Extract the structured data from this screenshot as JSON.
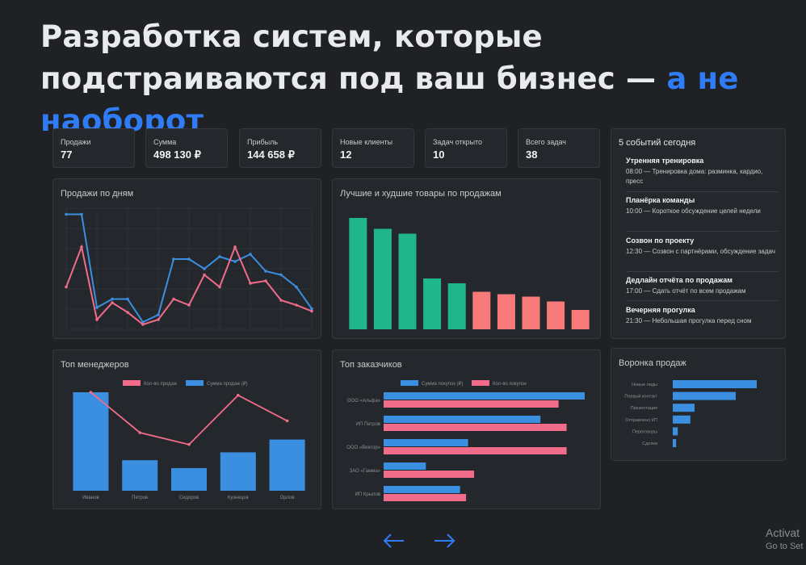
{
  "headline": {
    "main": "Разработка систем, которые подстраиваются под ваш бизнес — ",
    "accent": "а не наоборот"
  },
  "kpis": [
    {
      "label": "Продажи",
      "value": "77"
    },
    {
      "label": "Сумма",
      "value": "498 130 ₽"
    },
    {
      "label": "Прибыль",
      "value": "144 658 ₽"
    },
    {
      "label": "Новые клиенты",
      "value": "12"
    },
    {
      "label": "Задач открыто",
      "value": "10"
    },
    {
      "label": "Всего задач",
      "value": "38"
    }
  ],
  "events": {
    "title": "5 событий сегодня",
    "items": [
      {
        "title": "Утренняя тренировка",
        "desc": "08:00 — Тренировка дома: разминка, кардио, пресс"
      },
      {
        "title": "Планёрка команды",
        "desc": "10:00 — Короткое обсуждение целей недели"
      },
      {
        "title": "Созвон по проекту",
        "desc": "12:30 — Созвон с партнёрами, обсуждение задач"
      },
      {
        "title": "Дедлайн отчёта по продажам",
        "desc": "17:00 — Сдать отчёт по всем продажам"
      },
      {
        "title": "Вечерняя прогулка",
        "desc": "21:30 — Небольшая прогулка перед сном"
      }
    ]
  },
  "colors": {
    "blue": "#3b8fe0",
    "pink": "#f06c8a",
    "green": "#1fb68a",
    "salmon": "#f8797a",
    "accent": "#2f7cf6"
  },
  "chart_data": [
    {
      "type": "line",
      "title": "Продажи по дням",
      "ylim": [
        0,
        100
      ],
      "series": [
        {
          "values": [
            95,
            95,
            18,
            25,
            25,
            6,
            12,
            58,
            58,
            50,
            60,
            56,
            62,
            48,
            45,
            35,
            17
          ]
        },
        {
          "values": [
            35,
            68,
            8,
            22,
            14,
            4,
            8,
            25,
            20,
            45,
            35,
            68,
            38,
            40,
            24,
            20,
            15
          ]
        }
      ]
    },
    {
      "type": "bar",
      "title": "Лучшие и худшие товары по продажам",
      "ylim": [
        0,
        100
      ],
      "values": [
        92,
        83,
        79,
        42,
        38,
        31,
        29,
        27,
        23,
        16
      ],
      "colors": [
        "#1fb68a",
        "#1fb68a",
        "#1fb68a",
        "#1fb68a",
        "#1fb68a",
        "#f8797a",
        "#f8797a",
        "#f8797a",
        "#f8797a",
        "#f8797a"
      ]
    },
    {
      "type": "bar",
      "title": "Топ менеджеров",
      "categories": [
        "Иванов",
        "Петров",
        "Сидоров",
        "Кузнецов",
        "Орлов"
      ],
      "legend": [
        "Кол-во продаж",
        "Сумма продаж (₽)"
      ],
      "ylim": [
        0,
        100
      ],
      "series": [
        {
          "name": "Сумма продаж (₽)",
          "values": [
            100,
            31,
            23,
            39,
            52
          ]
        },
        {
          "name": "Кол-во продаж",
          "values": [
            100,
            59,
            47,
            97,
            71
          ]
        }
      ]
    },
    {
      "type": "bar",
      "title": "Топ заказчиков",
      "categories": [
        "ООО «Альфа»",
        "ИП Петров",
        "ООО «Вектор»",
        "ЗАО «Гамма»",
        "ИП Крылов"
      ],
      "legend": [
        "Сумма покупок (₽)",
        "Кол-во покупок"
      ],
      "xlim": [
        0,
        100
      ],
      "series": [
        {
          "name": "Сумма покупок (₽)",
          "values": [
            100,
            78,
            42,
            21,
            38
          ]
        },
        {
          "name": "Кол-во покупок",
          "values": [
            87,
            91,
            91,
            45,
            41
          ]
        }
      ]
    },
    {
      "type": "bar",
      "title": "Воронка продаж",
      "categories": [
        "Новые лиды",
        "Первый контакт",
        "Презентация",
        "Отправлено КП",
        "Переговоры",
        "Сделка"
      ],
      "xlim": [
        0,
        100
      ],
      "values": [
        100,
        75,
        26,
        21,
        6,
        4
      ]
    }
  ],
  "nav": {
    "prev_icon": "arrow-left-icon",
    "next_icon": "arrow-right-icon"
  },
  "watermark": {
    "line1": "Activat",
    "line2": "Go to Set"
  }
}
